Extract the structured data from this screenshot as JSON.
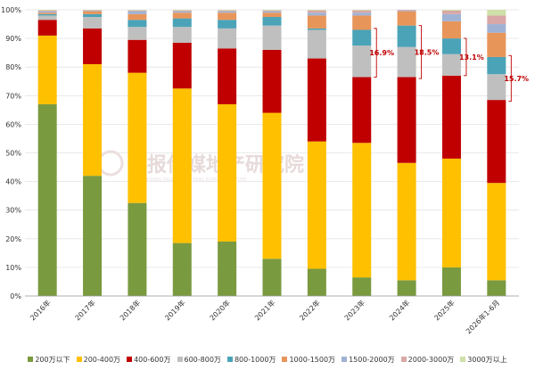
{
  "chart_data": {
    "type": "bar",
    "stacked": true,
    "percent": true,
    "title": "",
    "xlabel": "",
    "ylabel": "",
    "ylim": [
      0,
      100
    ],
    "yticks": [
      "0%",
      "10%",
      "20%",
      "30%",
      "40%",
      "50%",
      "60%",
      "70%",
      "80%",
      "90%",
      "100%"
    ],
    "categories": [
      "2016年",
      "2017年",
      "2018年",
      "2019年",
      "2020年",
      "2021年",
      "2022年",
      "2023年",
      "2024年",
      "2025年",
      "2026年1-6月"
    ],
    "legend_position": "bottom",
    "series": [
      {
        "name": "200万以下",
        "color": "#7a9a3f",
        "values": [
          67,
          42,
          32.5,
          18.5,
          19,
          13,
          9.5,
          6.5,
          5.5,
          10,
          5.5
        ]
      },
      {
        "name": "200-400万",
        "color": "#ffc000",
        "values": [
          24,
          39,
          45.5,
          54,
          48,
          51,
          44.5,
          47,
          41,
          38,
          34
        ]
      },
      {
        "name": "400-600万",
        "color": "#c00000",
        "values": [
          5.5,
          12.5,
          11.5,
          16,
          19.5,
          22,
          29,
          23,
          30,
          29,
          29
        ]
      },
      {
        "name": "600-800万",
        "color": "#bfbfbf",
        "values": [
          1.5,
          4,
          4.5,
          5.5,
          7,
          8.5,
          10,
          11,
          10.5,
          7.5,
          9
        ]
      },
      {
        "name": "800-1000万",
        "color": "#4ba3b8",
        "values": [
          0.5,
          1,
          2.5,
          3,
          3,
          3,
          0.5,
          5.5,
          7.5,
          5.5,
          6
        ]
      },
      {
        "name": "1000-1500万",
        "color": "#e8955a",
        "values": [
          0.5,
          1,
          2,
          2,
          2.5,
          1.5,
          4.5,
          5,
          5,
          6,
          8.5
        ]
      },
      {
        "name": "1500-2000万",
        "color": "#9fb2d4",
        "values": [
          0.5,
          0.2,
          1,
          0.5,
          0.5,
          0.5,
          1,
          1,
          0.3,
          2.5,
          3
        ]
      },
      {
        "name": "2000-3000万",
        "color": "#d9a7a7",
        "values": [
          0.3,
          0.2,
          0.3,
          0.3,
          0.3,
          0.3,
          0.8,
          0.8,
          0.2,
          1.2,
          3
        ]
      },
      {
        "name": "3000万以上",
        "color": "#cfe0a8",
        "values": [
          0.2,
          0.1,
          0.2,
          0.2,
          0.2,
          0.2,
          0.2,
          0.2,
          0,
          0.3,
          2
        ]
      }
    ],
    "annotations": [
      {
        "text": "16.9%",
        "category_index": 7,
        "range": [
          76.5,
          93.5
        ]
      },
      {
        "text": "18.5%",
        "category_index": 8,
        "range": [
          76,
          94.5
        ]
      },
      {
        "text": "13.1%",
        "category_index": 9,
        "range": [
          77,
          90
        ]
      },
      {
        "text": "15.7%",
        "category_index": 10,
        "range": [
          68,
          84
        ]
      }
    ],
    "watermark": {
      "title": "浙报传媒地产研究院",
      "subtitle": "ZHEJIANG DAILY MEDIA REAL ESTATE INSTITUTE"
    }
  }
}
